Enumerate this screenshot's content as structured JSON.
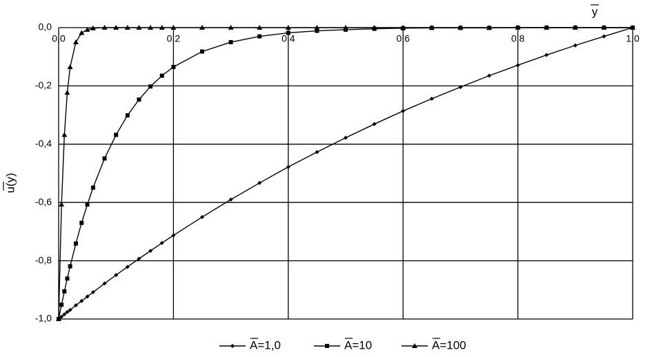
{
  "chart_data": {
    "type": "line",
    "x_label": "y",
    "y_label": "u(y)",
    "x": [
      0,
      0.005,
      0.01,
      0.015,
      0.02,
      0.03,
      0.04,
      0.05,
      0.06,
      0.08,
      0.1,
      0.12,
      0.14,
      0.16,
      0.18,
      0.2,
      0.25,
      0.3,
      0.35,
      0.4,
      0.45,
      0.5,
      0.55,
      0.6,
      0.65,
      0.7,
      0.75,
      0.8,
      0.85,
      0.9,
      0.95,
      1.0
    ],
    "series": [
      {
        "name": "A=1,0",
        "color": "#000000",
        "marker": "diamond",
        "values": [
          -1,
          -0.992,
          -0.984,
          -0.976,
          -0.969,
          -0.953,
          -0.938,
          -0.923,
          -0.908,
          -0.878,
          -0.849,
          -0.821,
          -0.793,
          -0.766,
          -0.739,
          -0.713,
          -0.65,
          -0.59,
          -0.533,
          -0.478,
          -0.427,
          -0.378,
          -0.331,
          -0.286,
          -0.244,
          -0.204,
          -0.165,
          -0.129,
          -0.094,
          -0.061,
          -0.03,
          0
        ]
      },
      {
        "name": "A=10",
        "color": "#000000",
        "marker": "square",
        "values": [
          -1,
          -0.951,
          -0.905,
          -0.861,
          -0.819,
          -0.741,
          -0.67,
          -0.607,
          -0.549,
          -0.449,
          -0.368,
          -0.301,
          -0.247,
          -0.202,
          -0.165,
          -0.135,
          -0.082,
          -0.05,
          -0.03,
          -0.018,
          -0.011,
          -0.007,
          -0.004,
          -0.002,
          -0.001,
          -0.001,
          -0.001,
          0,
          0,
          0,
          0,
          0
        ]
      },
      {
        "name": "A=100",
        "color": "#000000",
        "marker": "triangle",
        "values": [
          -1,
          -0.607,
          -0.368,
          -0.223,
          -0.135,
          -0.05,
          -0.018,
          -0.007,
          -0.002,
          0,
          0,
          0,
          0,
          0,
          0,
          0,
          0,
          0,
          0,
          0,
          0,
          0,
          0,
          0,
          0,
          0,
          0,
          0,
          0,
          0,
          0,
          0
        ]
      }
    ],
    "xlim": [
      0,
      1
    ],
    "ylim": [
      -1,
      0
    ],
    "xticks": [
      {
        "value": 0,
        "label": "0,0"
      },
      {
        "value": 0.2,
        "label": "0,2"
      },
      {
        "value": 0.4,
        "label": "0,4"
      },
      {
        "value": 0.6,
        "label": "0,6"
      },
      {
        "value": 0.8,
        "label": "0,8"
      },
      {
        "value": 1,
        "label": "1,0"
      }
    ],
    "yticks": [
      {
        "value": 0,
        "label": "0,0"
      },
      {
        "value": -0.2,
        "label": "-0,2"
      },
      {
        "value": -0.4,
        "label": "-0,4"
      },
      {
        "value": -0.6,
        "label": "-0,6"
      },
      {
        "value": -0.8,
        "label": "-0,8"
      },
      {
        "value": -1,
        "label": "-1,0"
      }
    ],
    "grid": true,
    "legend": "bottom"
  }
}
